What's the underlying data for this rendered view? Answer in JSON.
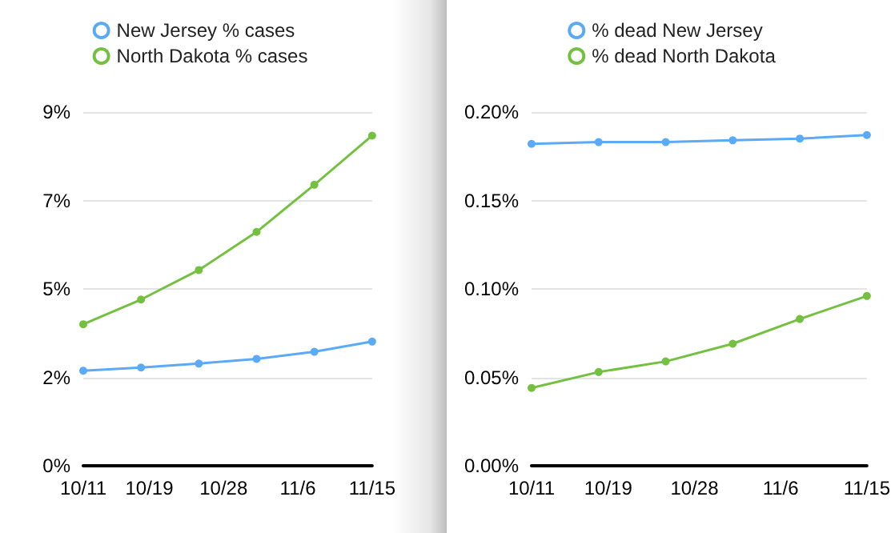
{
  "chart_data": [
    {
      "type": "line",
      "x": [
        "--10-11",
        "--10-18",
        "--10-25",
        "--11-01",
        "--11-08",
        "--11-15"
      ],
      "xlim": [
        "--10-11",
        "--11-15"
      ],
      "xticks": [
        {
          "value": "--10-11",
          "label": "10/11"
        },
        {
          "value": "--10-19",
          "label": "10/19"
        },
        {
          "value": "--10-28",
          "label": "10/28"
        },
        {
          "value": "--11-06",
          "label": "11/6"
        },
        {
          "value": "--11-15",
          "label": "11/15"
        }
      ],
      "ylim": [
        0,
        9
      ],
      "yticks": [
        {
          "value": 0,
          "label": "0%"
        },
        {
          "value": 2.25,
          "label": "2%"
        },
        {
          "value": 4.5,
          "label": "5%"
        },
        {
          "value": 6.75,
          "label": "7%"
        },
        {
          "value": 9,
          "label": "9%"
        }
      ],
      "grid": "y",
      "legend": "top",
      "marker": "circle",
      "line_style": "solid",
      "series": [
        {
          "name": "New Jersey % cases",
          "color": "#5aaaf5",
          "values": [
            2.42,
            2.5,
            2.6,
            2.72,
            2.9,
            3.16
          ]
        },
        {
          "name": "North Dakota % cases",
          "color": "#74c040",
          "values": [
            3.6,
            4.23,
            4.98,
            5.95,
            7.15,
            8.4
          ]
        }
      ]
    },
    {
      "type": "line",
      "x": [
        "--10-11",
        "--10-18",
        "--10-25",
        "--11-01",
        "--11-08",
        "--11-15"
      ],
      "xlim": [
        "--10-11",
        "--11-15"
      ],
      "xticks": [
        {
          "value": "--10-11",
          "label": "10/11"
        },
        {
          "value": "--10-19",
          "label": "10/19"
        },
        {
          "value": "--10-28",
          "label": "10/28"
        },
        {
          "value": "--11-06",
          "label": "11/6"
        },
        {
          "value": "--11-15",
          "label": "11/15"
        }
      ],
      "ylim": [
        0,
        0.2
      ],
      "yticks": [
        {
          "value": 0,
          "label": "0.00%"
        },
        {
          "value": 0.05,
          "label": "0.05%"
        },
        {
          "value": 0.1,
          "label": "0.10%"
        },
        {
          "value": 0.15,
          "label": "0.15%"
        },
        {
          "value": 0.2,
          "label": "0.20%"
        }
      ],
      "grid": "y",
      "legend": "top",
      "marker": "circle",
      "line_style": "solid",
      "series": [
        {
          "name": "% dead New Jersey",
          "color": "#5aaaf5",
          "values": [
            0.182,
            0.183,
            0.183,
            0.184,
            0.185,
            0.187
          ]
        },
        {
          "name": "% dead North Dakota",
          "color": "#74c040",
          "values": [
            0.044,
            0.053,
            0.059,
            0.069,
            0.083,
            0.096
          ]
        }
      ]
    }
  ]
}
